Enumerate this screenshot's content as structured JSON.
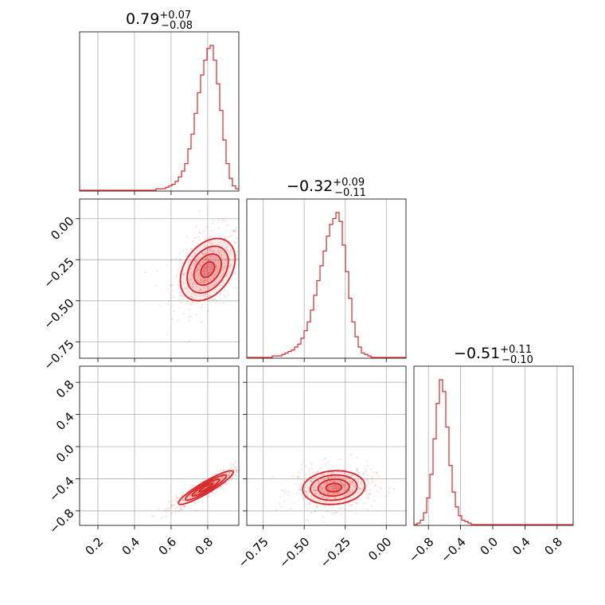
{
  "chart_data": {
    "type": "corner",
    "color": "#d62728",
    "parameters": 3,
    "titles": [
      {
        "median": "0.79",
        "plus": "+0.07",
        "minus": "−0.08"
      },
      {
        "median": "−0.32",
        "plus": "+0.09",
        "minus": "−0.11"
      },
      {
        "median": "−0.51",
        "plus": "+0.11",
        "minus": "−0.10"
      }
    ],
    "axes": [
      {
        "range": [
          0.1,
          0.97
        ],
        "ticks": [
          0.2,
          0.4,
          0.6,
          0.8
        ],
        "tick_labels": [
          "0.2",
          "0.4",
          "0.6",
          "0.8"
        ]
      },
      {
        "range": [
          -0.85,
          0.12
        ],
        "ticks": [
          -0.75,
          -0.5,
          -0.25,
          0.0
        ],
        "tick_labels": [
          "−0.75",
          "−0.50",
          "−0.25",
          "0.00"
        ]
      },
      {
        "range": [
          -0.98,
          1.0
        ],
        "ticks": [
          -0.8,
          -0.4,
          0.0,
          0.4,
          0.8
        ],
        "tick_labels": [
          "−0.8",
          "−0.4",
          "0.0",
          "0.4",
          "0.8"
        ]
      }
    ],
    "histograms": [
      {
        "bin_edges_start": 0.1,
        "bin_width": 0.0174,
        "counts": [
          0,
          0,
          0,
          0,
          0,
          0,
          0,
          0,
          0,
          0,
          0,
          0,
          0,
          0,
          0,
          0,
          0,
          0,
          0,
          0,
          0,
          0,
          0,
          0,
          1,
          1,
          1,
          2,
          3,
          4,
          6,
          9,
          13,
          18,
          28,
          38,
          52,
          66,
          78,
          88,
          96,
          98,
          88,
          72,
          54,
          34,
          18,
          8,
          3,
          1
        ]
      },
      {
        "bin_edges_start": -0.85,
        "bin_width": 0.0194,
        "counts": [
          0,
          0,
          0,
          0,
          0,
          0,
          0,
          0,
          1,
          1,
          1,
          2,
          3,
          4,
          5,
          7,
          9,
          13,
          18,
          24,
          32,
          42,
          52,
          62,
          72,
          82,
          90,
          94,
          98,
          92,
          76,
          58,
          40,
          24,
          14,
          7,
          3,
          2,
          1,
          0,
          0,
          0,
          0,
          0,
          0,
          0,
          0,
          0,
          0,
          0
        ]
      },
      {
        "bin_edges_start": -0.98,
        "bin_width": 0.0396,
        "counts": [
          0,
          1,
          3,
          8,
          18,
          34,
          58,
          82,
          98,
          90,
          66,
          40,
          22,
          12,
          6,
          3,
          2,
          1,
          0,
          0,
          0,
          0,
          0,
          0,
          0,
          0,
          0,
          0,
          0,
          0,
          0,
          0,
          0,
          0,
          0,
          0,
          0,
          0,
          0,
          0,
          0,
          0,
          0,
          0,
          0,
          0,
          0,
          0,
          0,
          0
        ]
      }
    ],
    "pairs": [
      {
        "row": 1,
        "col": 0,
        "center": [
          0.8,
          -0.31
        ],
        "sigma": [
          0.075,
          0.095
        ],
        "rho": 0.35
      },
      {
        "row": 2,
        "col": 0,
        "center": [
          0.79,
          -0.51
        ],
        "sigma": [
          0.075,
          0.105
        ],
        "rho": 0.92
      },
      {
        "row": 2,
        "col": 1,
        "center": [
          -0.32,
          -0.51
        ],
        "sigma": [
          0.095,
          0.105
        ],
        "rho": 0.1
      }
    ],
    "contour_levels_sigma": [
      0.5,
      1.0,
      1.5,
      2.0
    ],
    "grid": true
  }
}
